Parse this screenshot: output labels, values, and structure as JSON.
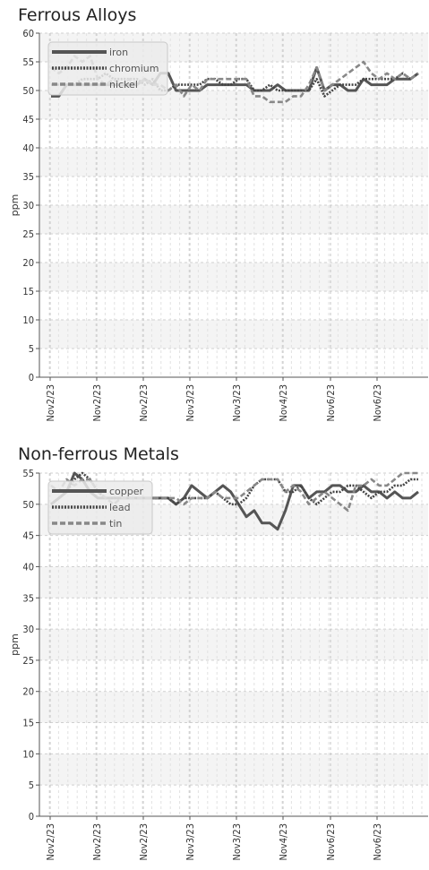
{
  "chart_data": [
    {
      "type": "line",
      "title": "Ferrous Alloys",
      "ylabel": "ppm",
      "xlabel": "",
      "ylim": [
        0,
        60
      ],
      "yticks": [
        0,
        5,
        10,
        15,
        20,
        25,
        30,
        35,
        40,
        45,
        50,
        55,
        60
      ],
      "x_tick_labels": [
        "Nov2/23",
        "Nov2/23",
        "Nov2/23",
        "Nov3/23",
        "Nov3/23",
        "Nov4/23",
        "Nov6/23",
        "Nov6/23"
      ],
      "grid": true,
      "legend": "top-left",
      "series": [
        {
          "name": "iron",
          "color": "#555555",
          "style": "solid",
          "values": [
            49,
            49,
            51,
            51,
            51,
            51,
            51,
            51,
            51,
            51,
            51,
            51,
            52,
            51,
            53,
            53,
            50,
            50,
            50,
            50,
            51,
            51,
            51,
            51,
            51,
            51,
            50,
            50,
            50,
            51,
            50,
            50,
            50,
            50,
            54,
            50,
            51,
            51,
            50,
            50,
            52,
            51,
            51,
            51,
            52,
            52,
            52,
            53
          ]
        },
        {
          "name": "chromium",
          "color": "#444444",
          "style": "dotted",
          "values": [
            51,
            51,
            51,
            51,
            52,
            52,
            52,
            53,
            52,
            52,
            52,
            52,
            51,
            52,
            50,
            50,
            51,
            51,
            51,
            51,
            52,
            52,
            51,
            51,
            52,
            52,
            50,
            50,
            51,
            50,
            50,
            50,
            50,
            50,
            52,
            49,
            50,
            51,
            51,
            51,
            52,
            52,
            52,
            52,
            52,
            53,
            52,
            53
          ]
        },
        {
          "name": "nickel",
          "color": "#888888",
          "style": "dashed",
          "values": [
            54,
            53,
            54,
            56,
            55,
            56,
            52,
            51,
            52,
            51,
            52,
            51,
            52,
            51,
            51,
            50,
            51,
            49,
            51,
            50,
            52,
            52,
            52,
            52,
            52,
            52,
            49,
            49,
            48,
            48,
            48,
            49,
            49,
            51,
            54,
            50,
            51,
            52,
            53,
            54,
            55,
            53,
            52,
            53,
            52,
            53,
            52,
            53
          ]
        }
      ]
    },
    {
      "type": "line",
      "title": "Non-ferrous Metals",
      "ylabel": "ppm",
      "xlabel": "",
      "ylim": [
        0,
        55
      ],
      "yticks": [
        0,
        5,
        10,
        15,
        20,
        25,
        30,
        35,
        40,
        45,
        50,
        55
      ],
      "x_tick_labels": [
        "Nov2/23",
        "Nov2/23",
        "Nov2/23",
        "Nov3/23",
        "Nov3/23",
        "Nov4/23",
        "Nov6/23",
        "Nov6/23"
      ],
      "grid": true,
      "legend": "top-left",
      "series": [
        {
          "name": "copper",
          "color": "#555555",
          "style": "solid",
          "values": [
            50,
            51,
            52,
            55,
            54,
            52,
            51,
            51,
            51,
            51,
            51,
            51,
            51,
            51,
            51,
            51,
            50,
            51,
            53,
            52,
            51,
            52,
            53,
            52,
            50,
            48,
            49,
            47,
            47,
            46,
            49,
            53,
            53,
            51,
            52,
            52,
            53,
            53,
            52,
            52,
            53,
            52,
            52,
            51,
            52,
            51,
            51,
            52
          ]
        },
        {
          "name": "lead",
          "color": "#444444",
          "style": "dotted",
          "values": [
            50,
            51,
            52,
            54,
            55,
            54,
            52,
            51,
            51,
            51,
            51,
            51,
            51,
            51,
            51,
            51,
            50,
            51,
            51,
            51,
            51,
            52,
            51,
            50,
            50,
            51,
            53,
            54,
            54,
            54,
            52,
            52,
            53,
            51,
            50,
            51,
            52,
            52,
            53,
            53,
            52,
            51,
            52,
            52,
            53,
            53,
            54,
            54
          ]
        },
        {
          "name": "tin",
          "color": "#888888",
          "style": "dashed",
          "values": [
            53,
            52,
            54,
            53,
            54,
            54,
            52,
            51,
            50,
            51,
            51,
            51,
            51,
            51,
            51,
            51,
            51,
            50,
            51,
            51,
            51,
            52,
            51,
            51,
            51,
            52,
            53,
            54,
            54,
            54,
            52,
            53,
            52,
            50,
            51,
            52,
            51,
            50,
            49,
            53,
            53,
            54,
            53,
            53,
            54,
            55,
            55,
            55
          ]
        }
      ]
    }
  ]
}
